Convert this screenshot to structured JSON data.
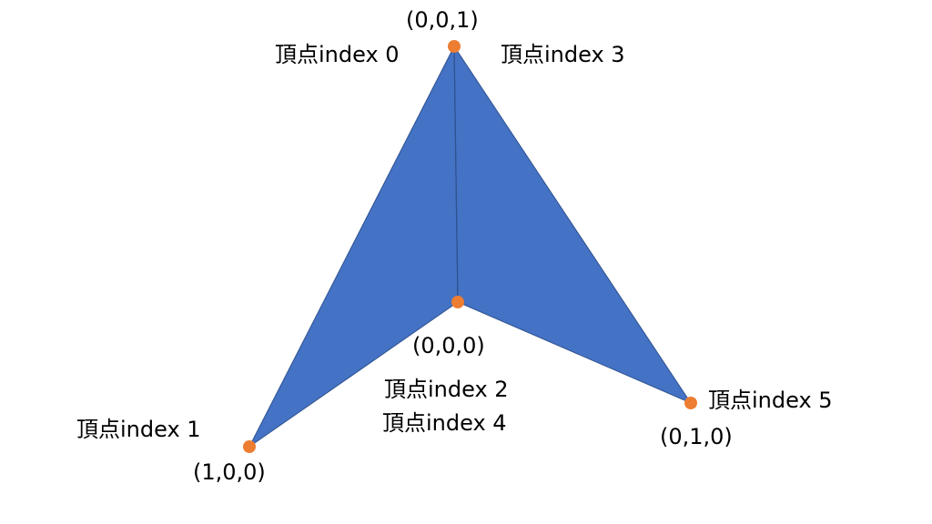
{
  "colors": {
    "face": "#4472C4",
    "edge": "#2F528F",
    "vertex": "#ED7D31",
    "text": "#000000"
  },
  "vertices": {
    "top": {
      "coord": "(0,0,1)",
      "labels": [
        "頂点index 0",
        "頂点index 3"
      ]
    },
    "center": {
      "coord": "(0,0,0)",
      "labels": [
        "頂点index 2",
        "頂点index 4"
      ]
    },
    "left": {
      "coord": "(1,0,0)",
      "labels": [
        "頂点index 1"
      ]
    },
    "right": {
      "coord": "(0,1,0)",
      "labels": [
        "頂点index 5"
      ]
    }
  }
}
